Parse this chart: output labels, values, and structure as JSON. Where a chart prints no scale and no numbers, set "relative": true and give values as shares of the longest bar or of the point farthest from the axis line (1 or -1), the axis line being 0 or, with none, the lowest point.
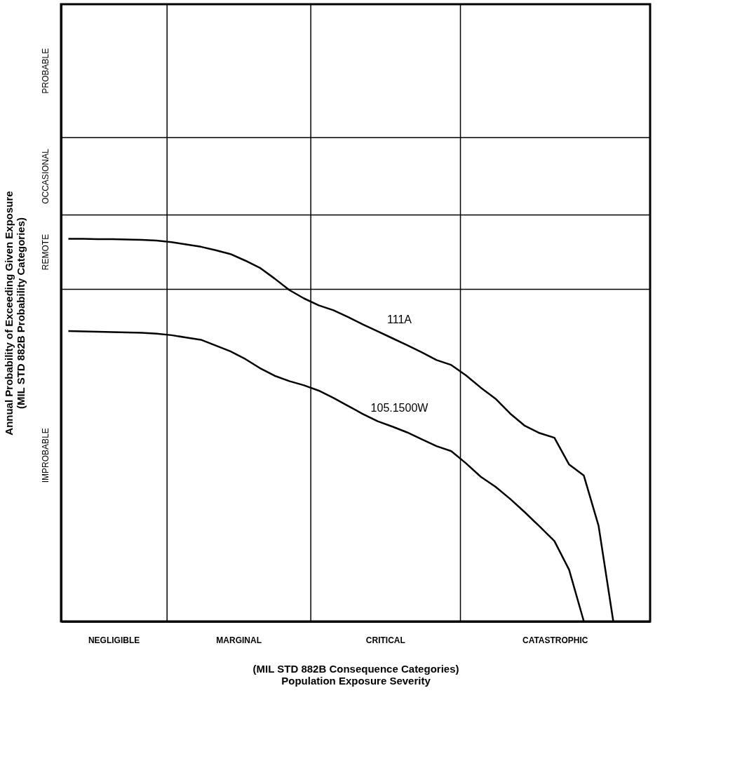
{
  "chart_data": {
    "type": "line",
    "relative": true,
    "xlabel": "(MIL STD 882B Consequence Categories)\nPopulation Exposure Severity",
    "ylabel": "Annual Probability of Exceeding Given Exposure\n(MIL STD 882B Probability Categories)",
    "tick_labels": false,
    "marker": "none",
    "line_style": "solid",
    "categories": [
      null,
      null,
      null,
      null,
      null,
      null,
      null,
      null,
      null,
      null,
      null,
      null,
      null,
      null,
      null,
      null,
      null,
      null,
      null,
      null,
      null,
      null,
      null,
      null,
      null,
      null,
      null,
      null,
      null,
      null,
      null,
      null,
      null,
      null,
      null,
      null,
      null,
      null,
      null,
      null
    ],
    "series": [
      {
        "name": "111A",
        "color": "#000000",
        "values": [
          1.0,
          1.0,
          0.999,
          0.999,
          0.998,
          0.997,
          0.995,
          0.991,
          0.985,
          0.979,
          0.97,
          0.96,
          0.943,
          0.924,
          0.896,
          0.866,
          0.844,
          0.826,
          0.813,
          0.795,
          0.776,
          0.758,
          0.74,
          0.722,
          0.703,
          0.683,
          0.67,
          0.643,
          0.611,
          0.582,
          0.543,
          0.511,
          0.492,
          0.48,
          0.41,
          0.381,
          0.25,
          0,
          null,
          null
        ]
      },
      {
        "name": "105.1500W",
        "color": "#000000",
        "values": [
          0.759,
          0.758,
          0.757,
          0.756,
          0.755,
          0.754,
          0.752,
          0.748,
          0.742,
          0.736,
          0.721,
          0.706,
          0.686,
          0.662,
          0.642,
          0.628,
          0.617,
          0.603,
          0.584,
          0.563,
          0.542,
          0.523,
          0.509,
          0.494,
          0.476,
          0.458,
          0.445,
          0.413,
          0.378,
          0.352,
          0.32,
          0.285,
          0.248,
          0.21,
          0.135,
          0,
          null,
          null,
          null,
          null
        ]
      }
    ],
    "ref_lines": [
      {
        "axis": "y",
        "value": 1.264
      },
      {
        "axis": "y",
        "value": 1.062
      },
      {
        "axis": "y",
        "value": 0.868
      }
    ],
    "annotations": [
      "NEGLIGIBLE",
      "MARGINAL",
      "CRITICAL",
      "CATASTROPHIC",
      "PROBABLE",
      "OCCASIONAL",
      "REMOTE",
      "IMPROBABLE"
    ]
  }
}
